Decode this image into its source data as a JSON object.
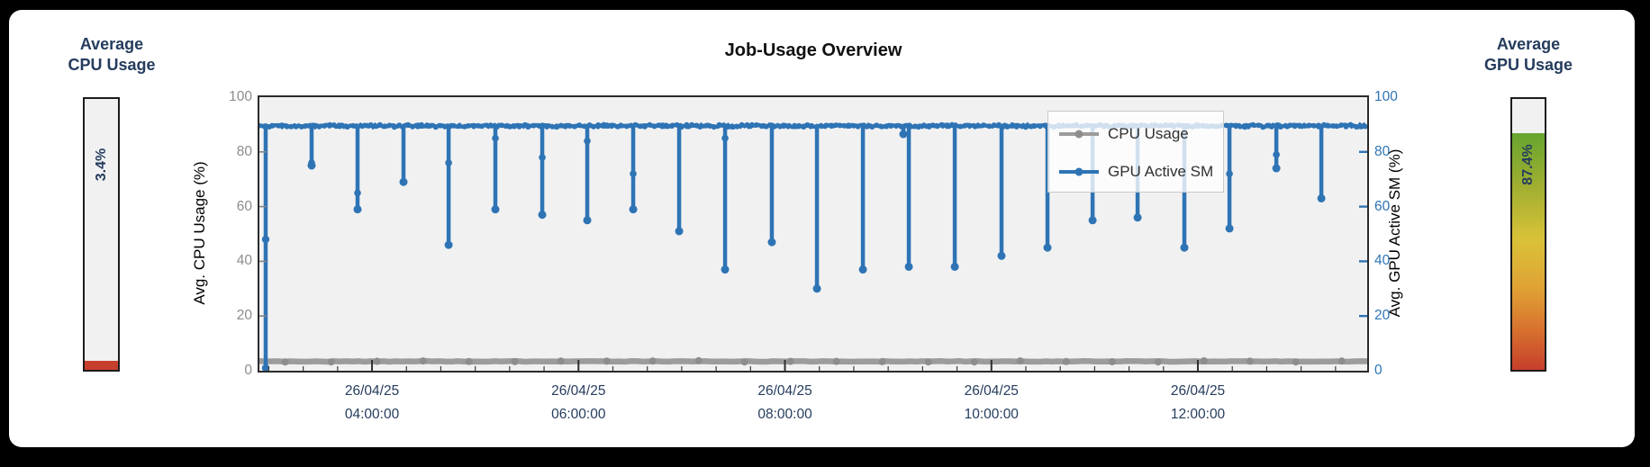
{
  "panel": {
    "background": "#ffffff",
    "page_background": "#000000"
  },
  "cpu_gauge": {
    "title_line1": "Average",
    "title_line2": "CPU Usage",
    "value_label": "3.4%",
    "value_pct": 3.4,
    "fill_color": "#c7402d",
    "track_color": "#f1f1f2"
  },
  "gpu_gauge": {
    "title_line1": "Average",
    "title_line2": "GPU Usage",
    "value_label": "87.4%",
    "value_pct": 87.4,
    "track_color": "#f1f1f2",
    "gradient": [
      {
        "color": "#67a52f",
        "at": 0
      },
      {
        "color": "#9fae31",
        "at": 22
      },
      {
        "color": "#d9c238",
        "at": 45
      },
      {
        "color": "#e0a335",
        "at": 65
      },
      {
        "color": "#d8752f",
        "at": 82
      },
      {
        "color": "#c63f2b",
        "at": 100
      }
    ]
  },
  "chart_data": {
    "type": "line",
    "title": "Job-Usage Overview",
    "x_axis": {
      "range_hours": [
        2.909,
        13.64
      ],
      "minor_tick_hours": 0.33333,
      "label_color": "#253c5e",
      "labels": [
        {
          "date": "26/04/25",
          "time": "04:00:00",
          "hour": 4
        },
        {
          "date": "26/04/25",
          "time": "06:00:00",
          "hour": 6
        },
        {
          "date": "26/04/25",
          "time": "08:00:00",
          "hour": 8
        },
        {
          "date": "26/04/25",
          "time": "10:00:00",
          "hour": 10
        },
        {
          "date": "26/04/25",
          "time": "12:00:00",
          "hour": 12
        }
      ]
    },
    "left_axis": {
      "label": "Avg. CPU Usage (%)",
      "ticks": [
        0,
        20,
        40,
        60,
        80,
        100
      ],
      "range": [
        0,
        100
      ],
      "color": "#8c8c8c"
    },
    "right_axis": {
      "label": "Avg. GPU Active SM (%)",
      "ticks": [
        0,
        20,
        40,
        60,
        80,
        100
      ],
      "range": [
        0,
        100
      ],
      "color": "#2e74b5"
    },
    "legend": {
      "position": "upper-right-inside",
      "entries": [
        {
          "label": "CPU Usage",
          "line_color": "#9c9c9c",
          "marker_color": "#8d8d8d"
        },
        {
          "label": "GPU Active SM",
          "line_color": "#2e74b5",
          "marker_color": "#2e74b5"
        }
      ]
    },
    "series": [
      {
        "name": "CPU Usage",
        "type": "constant-line",
        "value": 3.4,
        "color": "#9c9c9c",
        "marker_color": "#8d8d8d",
        "linewidth": 6.5
      },
      {
        "name": "GPU Active SM",
        "type": "baseline-with-dips",
        "baseline": 89.5,
        "color": "#2e74b5",
        "linewidth": 4.5,
        "start_spike": {
          "t": 2.97,
          "from": 0,
          "points": [
            48,
            1
          ]
        },
        "dips": [
          {
            "t": 3.415,
            "v": 75,
            "mid": 76
          },
          {
            "t": 3.86,
            "v": 59,
            "mid": 65
          },
          {
            "t": 4.305,
            "v": 69
          },
          {
            "t": 4.742,
            "v": 46,
            "mid": 76
          },
          {
            "t": 5.195,
            "v": 59,
            "mid": 85
          },
          {
            "t": 5.649,
            "v": 57,
            "mid": 78
          },
          {
            "t": 6.085,
            "v": 55,
            "mid": 84
          },
          {
            "t": 6.53,
            "v": 59,
            "mid": 72
          },
          {
            "t": 6.975,
            "v": 51
          },
          {
            "t": 7.42,
            "v": 37,
            "mid": 85
          },
          {
            "t": 7.873,
            "v": 47
          },
          {
            "t": 8.31,
            "v": 30
          },
          {
            "t": 8.755,
            "v": 37
          },
          {
            "t": 9.147,
            "v": 86.5
          },
          {
            "t": 9.2,
            "v": 38
          },
          {
            "t": 9.645,
            "v": 38
          },
          {
            "t": 10.098,
            "v": 42
          },
          {
            "t": 10.543,
            "v": 45
          },
          {
            "t": 10.98,
            "v": 55
          },
          {
            "t": 11.416,
            "v": 56
          },
          {
            "t": 11.869,
            "v": 45
          },
          {
            "t": 12.306,
            "v": 52,
            "mid": 72
          },
          {
            "t": 12.76,
            "v": 74,
            "mid": 79
          },
          {
            "t": 13.196,
            "v": 63
          }
        ]
      }
    ]
  }
}
